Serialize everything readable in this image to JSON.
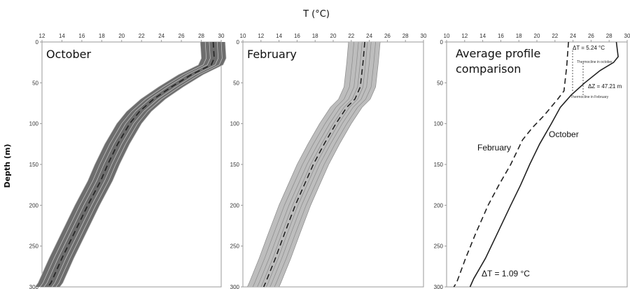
{
  "figure": {
    "top_axis_label": "T (°C)",
    "y_axis_label": "Depth (m)"
  },
  "chart_data": [
    {
      "type": "line",
      "title": "October",
      "xlabel": "T (°C)",
      "ylabel": "Depth (m)",
      "xlim": [
        12,
        30
      ],
      "ylim": [
        0,
        300
      ],
      "x_ticks": [
        12,
        14,
        16,
        18,
        20,
        22,
        24,
        26,
        28,
        30
      ],
      "y_ticks": [
        0,
        50,
        100,
        150,
        200,
        250,
        300
      ],
      "y_inverted": true,
      "series": [
        {
          "style": "dashed-mean",
          "points": [
            [
              29.2,
              0
            ],
            [
              29.3,
              20
            ],
            [
              29.0,
              28
            ],
            [
              27.0,
              40
            ],
            [
              25.0,
              55
            ],
            [
              23.2,
              70
            ],
            [
              21.8,
              85
            ],
            [
              20.8,
              100
            ],
            [
              19.6,
              125
            ],
            [
              18.6,
              150
            ],
            [
              17.9,
              170
            ],
            [
              16.6,
              200
            ],
            [
              15.2,
              235
            ],
            [
              14.0,
              265
            ],
            [
              12.9,
              295
            ],
            [
              12.6,
              300
            ]
          ]
        }
      ],
      "band_offsets": [
        -1.3,
        -0.8,
        -0.4,
        0.4,
        0.8,
        1.2
      ]
    },
    {
      "type": "line",
      "title": "February",
      "xlabel": "T (°C)",
      "ylabel": "Depth (m)",
      "xlim": [
        10,
        30
      ],
      "ylim": [
        0,
        300
      ],
      "x_ticks": [
        10,
        12,
        14,
        16,
        18,
        20,
        22,
        24,
        26,
        28,
        30
      ],
      "y_ticks": [
        0,
        50,
        100,
        150,
        200,
        250,
        300
      ],
      "y_inverted": true,
      "series": [
        {
          "style": "dashed-mean",
          "points": [
            [
              23.5,
              0
            ],
            [
              23.3,
              25
            ],
            [
              23.0,
              55
            ],
            [
              22.4,
              70
            ],
            [
              21.5,
              80
            ],
            [
              20.3,
              100
            ],
            [
              19.0,
              125
            ],
            [
              17.8,
              150
            ],
            [
              16.8,
              175
            ],
            [
              15.8,
              200
            ],
            [
              14.6,
              235
            ],
            [
              13.6,
              265
            ],
            [
              12.5,
              295
            ],
            [
              12.3,
              300
            ]
          ]
        }
      ],
      "band_offsets": [
        -1.8,
        -1.2,
        -0.7,
        -0.3,
        0.3,
        0.7,
        1.2,
        1.7
      ]
    },
    {
      "type": "line",
      "title": "Average profile comparison",
      "xlabel": "T (°C)",
      "ylabel": "Depth (m)",
      "xlim": [
        10,
        30
      ],
      "ylim": [
        0,
        300
      ],
      "x_ticks": [
        10,
        12,
        14,
        16,
        18,
        20,
        22,
        24,
        26,
        28,
        30
      ],
      "y_ticks": [
        0,
        50,
        100,
        150,
        200,
        250,
        300
      ],
      "y_inverted": true,
      "series": [
        {
          "name": "October",
          "style": "solid",
          "points": [
            [
              28.8,
              0
            ],
            [
              29.0,
              18
            ],
            [
              28.5,
              25
            ],
            [
              27.0,
              35
            ],
            [
              25.3,
              50
            ],
            [
              23.8,
              65
            ],
            [
              22.6,
              80
            ],
            [
              21.6,
              100
            ],
            [
              20.3,
              125
            ],
            [
              19.2,
              150
            ],
            [
              18.2,
              175
            ],
            [
              17.1,
              200
            ],
            [
              15.6,
              235
            ],
            [
              14.3,
              265
            ],
            [
              13.0,
              290
            ],
            [
              12.6,
              300
            ]
          ]
        },
        {
          "name": "February",
          "style": "dashed",
          "points": [
            [
              23.5,
              0
            ],
            [
              23.3,
              30
            ],
            [
              23.0,
              60
            ],
            [
              22.3,
              70
            ],
            [
              20.8,
              90
            ],
            [
              19.5,
              105
            ],
            [
              18.4,
              120
            ],
            [
              17.1,
              150
            ],
            [
              15.8,
              175
            ],
            [
              14.6,
              200
            ],
            [
              13.2,
              235
            ],
            [
              12.1,
              265
            ],
            [
              11.1,
              295
            ],
            [
              10.8,
              300
            ]
          ]
        }
      ],
      "annotations": {
        "delta_t_top": "ΔT = 5.24 °C",
        "thermocline_october": "Thermocline in october",
        "delta_z": "ΔZ = 47.21 m",
        "thermocline_february": "Thermocline in February",
        "label_october": "October",
        "label_february": "February",
        "delta_t_bottom": "ΔT = 1.09 °C"
      }
    }
  ]
}
